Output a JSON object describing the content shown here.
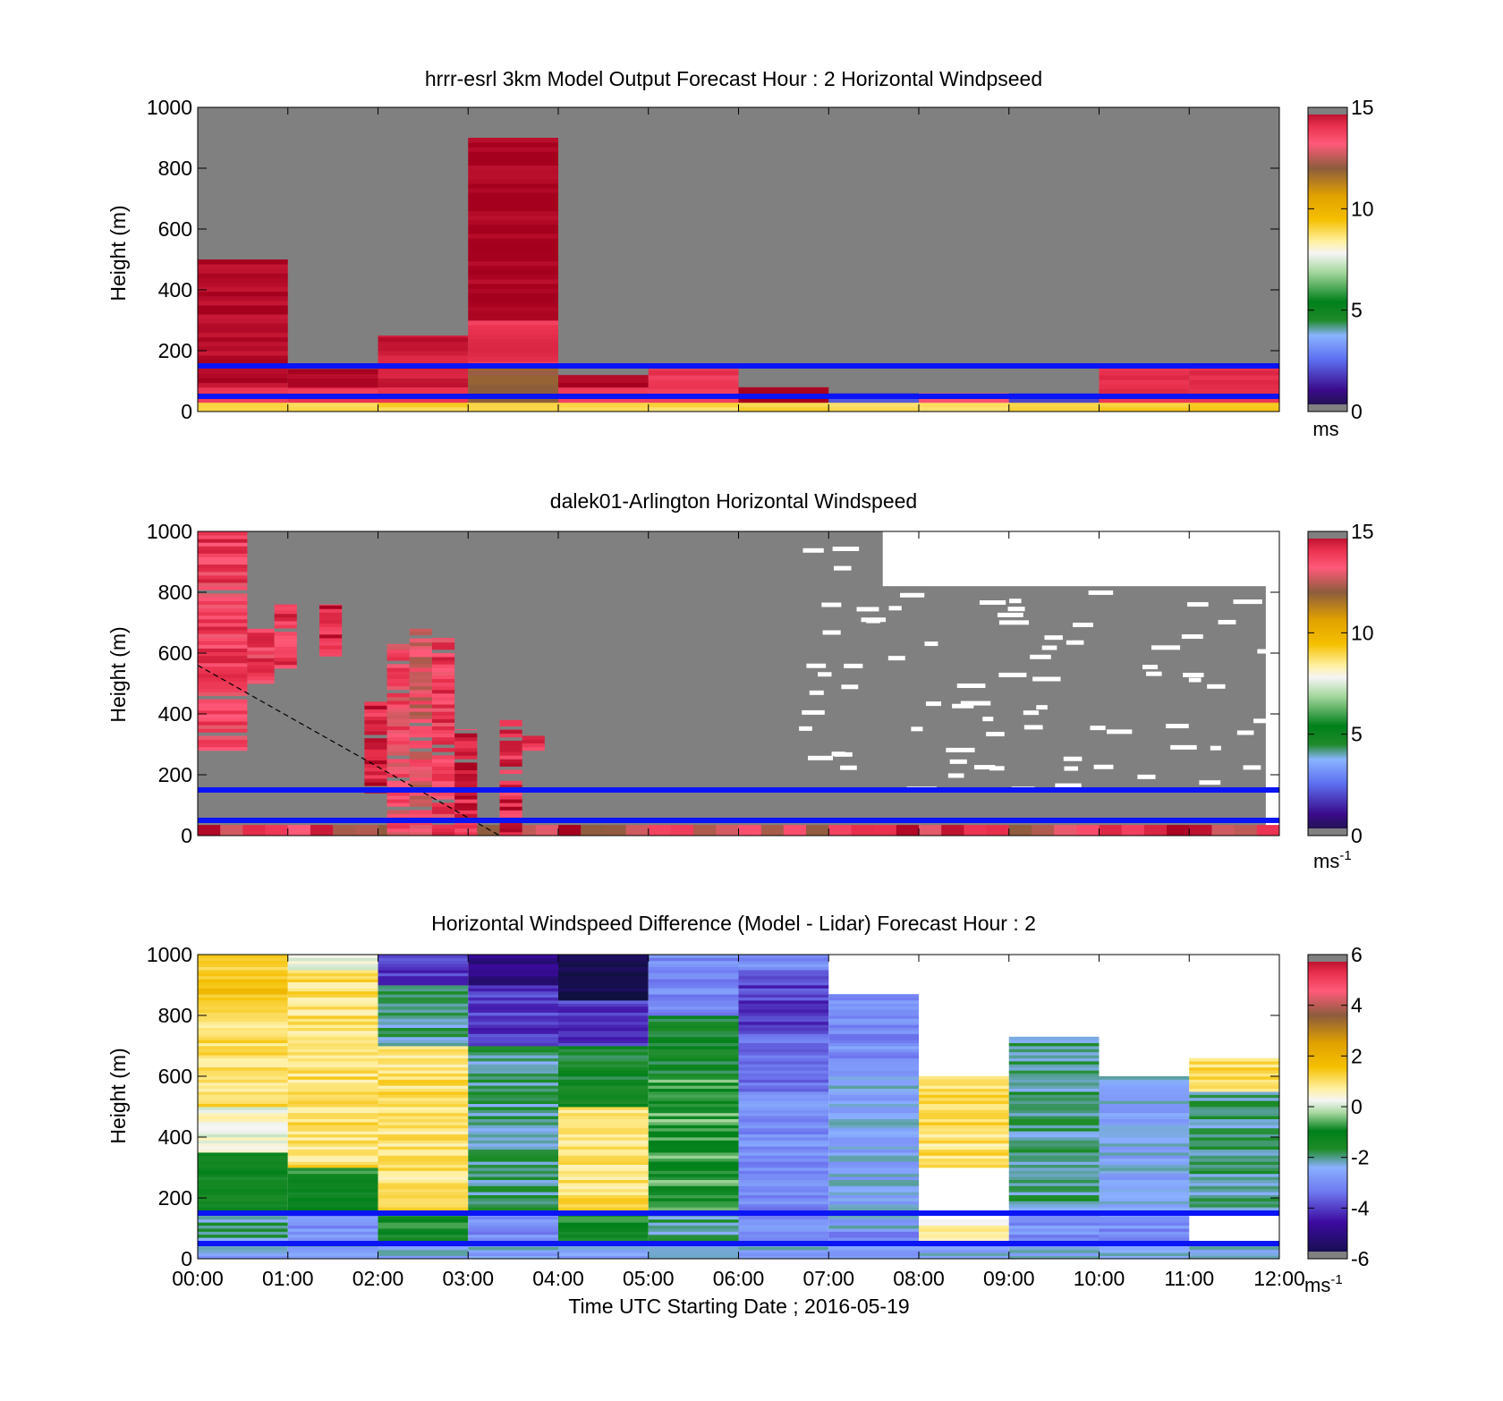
{
  "figure": {
    "xlabel": "Time UTC  Starting Date ; 2016-05-19",
    "x_tick_labels": [
      "00:00",
      "01:00",
      "02:00",
      "03:00",
      "04:00",
      "05:00",
      "06:00",
      "07:00",
      "08:00",
      "09:00",
      "10:00",
      "11:00",
      "12:00"
    ],
    "ref_lines_m": [
      150,
      50
    ],
    "ref_line_color": "#0a14f5"
  },
  "chart_data": [
    {
      "type": "heatmap",
      "title": "hrrr-esrl 3km Model Output   Forecast Hour : 2 Horizontal Windpseed",
      "ylabel": "Height (m)",
      "ylim": [
        0,
        1000
      ],
      "yticks": [
        0,
        200,
        400,
        600,
        800,
        1000
      ],
      "colorbar": {
        "min": 0,
        "max": 15,
        "ticks": [
          0,
          5,
          10,
          15
        ],
        "unit": "ms",
        "unit_sup": ""
      },
      "hourly_profiles": [
        {
          "hour": 0,
          "top_m": 500,
          "bands": [
            [
              0,
              30,
              9
            ],
            [
              30,
              80,
              14
            ],
            [
              80,
              500,
              14.8
            ]
          ]
        },
        {
          "hour": 1,
          "top_m": 140,
          "bands": [
            [
              0,
              30,
              9
            ],
            [
              30,
              80,
              14
            ],
            [
              80,
              140,
              15
            ]
          ]
        },
        {
          "hour": 2,
          "top_m": 250,
          "bands": [
            [
              0,
              30,
              9
            ],
            [
              30,
              80,
              14
            ],
            [
              80,
              250,
              14.5
            ]
          ]
        },
        {
          "hour": 3,
          "top_m": 900,
          "bands": [
            [
              0,
              30,
              9
            ],
            [
              30,
              150,
              12
            ],
            [
              150,
              300,
              14
            ],
            [
              300,
              900,
              15
            ]
          ]
        },
        {
          "hour": 4,
          "top_m": 120,
          "bands": [
            [
              0,
              30,
              9
            ],
            [
              30,
              80,
              14
            ],
            [
              80,
              120,
              15
            ]
          ]
        },
        {
          "hour": 5,
          "top_m": 140,
          "bands": [
            [
              0,
              30,
              9
            ],
            [
              30,
              140,
              14
            ]
          ]
        },
        {
          "hour": 6,
          "top_m": 80,
          "bands": [
            [
              0,
              30,
              9
            ],
            [
              30,
              80,
              15
            ]
          ]
        },
        {
          "hour": 7,
          "top_m": 60,
          "bands": [
            [
              0,
              30,
              9
            ],
            [
              30,
              60,
              2
            ]
          ]
        },
        {
          "hour": 8,
          "top_m": 60,
          "bands": [
            [
              0,
              30,
              9
            ],
            [
              30,
              60,
              13.5
            ]
          ]
        },
        {
          "hour": 9,
          "top_m": 60,
          "bands": [
            [
              0,
              30,
              9
            ],
            [
              30,
              60,
              2
            ]
          ]
        },
        {
          "hour": 10,
          "top_m": 150,
          "bands": [
            [
              0,
              30,
              9
            ],
            [
              30,
              150,
              14
            ]
          ]
        },
        {
          "hour": 11,
          "top_m": 150,
          "bands": [
            [
              0,
              30,
              9
            ],
            [
              30,
              150,
              14
            ]
          ]
        }
      ]
    },
    {
      "type": "heatmap",
      "title": "dalek01-Arlington  Horizontal Windspeed",
      "ylabel": "Height (m)",
      "ylim": [
        0,
        1000
      ],
      "yticks": [
        0,
        200,
        400,
        600,
        800,
        1000
      ],
      "colorbar": {
        "min": 0,
        "max": 15,
        "ticks": [
          0,
          5,
          10,
          15
        ],
        "unit": "ms",
        "unit_sup": "-1"
      },
      "columns": [
        {
          "t0": 0,
          "t1": 0.55,
          "top_m": 1000,
          "base_m": 280,
          "v": 14.5
        },
        {
          "t0": 0.55,
          "t1": 0.85,
          "top_m": 680,
          "base_m": 500,
          "v": 14.5
        },
        {
          "t0": 0.85,
          "t1": 1.1,
          "top_m": 760,
          "base_m": 550,
          "v": 14.8
        },
        {
          "t0": 1.35,
          "t1": 1.6,
          "top_m": 760,
          "base_m": 590,
          "v": 15
        },
        {
          "t0": 1.85,
          "t1": 2.1,
          "top_m": 440,
          "base_m": 140,
          "v": 15
        },
        {
          "t0": 2.1,
          "t1": 2.35,
          "top_m": 630,
          "base_m": 0,
          "v": 14.2
        },
        {
          "t0": 2.35,
          "t1": 2.6,
          "top_m": 680,
          "base_m": 0,
          "v": 13.8
        },
        {
          "t0": 2.6,
          "t1": 2.85,
          "top_m": 650,
          "base_m": 0,
          "v": 14.5
        },
        {
          "t0": 2.85,
          "t1": 3.1,
          "top_m": 350,
          "base_m": 0,
          "v": 15
        },
        {
          "t0": 3.35,
          "t1": 3.6,
          "top_m": 380,
          "base_m": 0,
          "v": 15
        },
        {
          "t0": 3.6,
          "t1": 3.85,
          "top_m": 330,
          "base_m": 280,
          "v": 15
        }
      ],
      "dashed_line": {
        "from": [
          0,
          560
        ],
        "to": [
          3.35,
          0
        ]
      }
    },
    {
      "type": "heatmap",
      "title": "Horizontal Windspeed Difference (Model - Lidar) Forecast Hour : 2",
      "ylabel": "Height (m)",
      "ylim": [
        0,
        1000
      ],
      "yticks": [
        0,
        200,
        400,
        600,
        800,
        1000
      ],
      "colorbar": {
        "min": -6,
        "max": 6,
        "ticks": [
          -6,
          -4,
          -2,
          0,
          2,
          4,
          6
        ],
        "unit": "ms",
        "unit_sup": "-1"
      },
      "hourly_profiles": [
        {
          "hour": 0,
          "top_m": 1000,
          "bands": [
            [
              0,
              50,
              -2.5
            ],
            [
              50,
              150,
              -2
            ],
            [
              150,
              350,
              -1.2
            ],
            [
              350,
              500,
              0.3
            ],
            [
              500,
              800,
              1
            ],
            [
              800,
              1000,
              1.4
            ]
          ]
        },
        {
          "hour": 1,
          "top_m": 1000,
          "bands": [
            [
              0,
              50,
              -2.5
            ],
            [
              50,
              150,
              -3
            ],
            [
              150,
              300,
              -1
            ],
            [
              300,
              950,
              1
            ],
            [
              950,
              1000,
              0
            ]
          ]
        },
        {
          "hour": 2,
          "top_m": 1000,
          "bands": [
            [
              0,
              50,
              -2.5
            ],
            [
              50,
              150,
              -1
            ],
            [
              150,
              700,
              1
            ],
            [
              700,
              900,
              -2
            ],
            [
              900,
              1000,
              -4
            ]
          ]
        },
        {
          "hour": 3,
          "top_m": 1000,
          "bands": [
            [
              0,
              50,
              -2.5
            ],
            [
              50,
              150,
              -3
            ],
            [
              150,
              700,
              -2
            ],
            [
              700,
              900,
              -4
            ],
            [
              900,
              1000,
              -5
            ]
          ]
        },
        {
          "hour": 4,
          "top_m": 1000,
          "bands": [
            [
              0,
              50,
              -2.5
            ],
            [
              50,
              150,
              -1
            ],
            [
              150,
              500,
              1
            ],
            [
              500,
              700,
              -1.5
            ],
            [
              700,
              850,
              -4
            ],
            [
              850,
              1000,
              -5.8
            ]
          ]
        },
        {
          "hour": 5,
          "top_m": 1000,
          "bands": [
            [
              0,
              50,
              -2.5
            ],
            [
              50,
              150,
              -2
            ],
            [
              150,
              600,
              -0.7
            ],
            [
              600,
              800,
              -1.5
            ],
            [
              800,
              1000,
              -3
            ]
          ]
        },
        {
          "hour": 6,
          "top_m": 1000,
          "bands": [
            [
              0,
              50,
              -2.5
            ],
            [
              50,
              150,
              -3
            ],
            [
              150,
              550,
              -3
            ],
            [
              550,
              750,
              -3.5
            ],
            [
              750,
              950,
              -4
            ],
            [
              950,
              1000,
              -3
            ]
          ]
        },
        {
          "hour": 7,
          "top_m": 870,
          "bands": [
            [
              0,
              50,
              -2.5
            ],
            [
              50,
              100,
              -3
            ],
            [
              100,
              600,
              -2.5
            ],
            [
              600,
              870,
              -3
            ]
          ]
        },
        {
          "hour": 8,
          "top_m": 600,
          "bands": [
            [
              0,
              50,
              -2.5
            ],
            [
              50,
              130,
              0.5
            ],
            [
              300,
              600,
              1
            ]
          ]
        },
        {
          "hour": 9,
          "top_m": 730,
          "bands": [
            [
              0,
              50,
              -2.5
            ],
            [
              50,
              150,
              -3
            ],
            [
              150,
              730,
              -2
            ]
          ]
        },
        {
          "hour": 10,
          "top_m": 600,
          "bands": [
            [
              0,
              50,
              -2.5
            ],
            [
              50,
              150,
              -3
            ],
            [
              150,
              600,
              -2.5
            ]
          ]
        },
        {
          "hour": 11,
          "top_m": 660,
          "bands": [
            [
              0,
              50,
              -2.5
            ],
            [
              150,
              550,
              -2
            ],
            [
              550,
              660,
              1
            ]
          ]
        }
      ]
    }
  ]
}
